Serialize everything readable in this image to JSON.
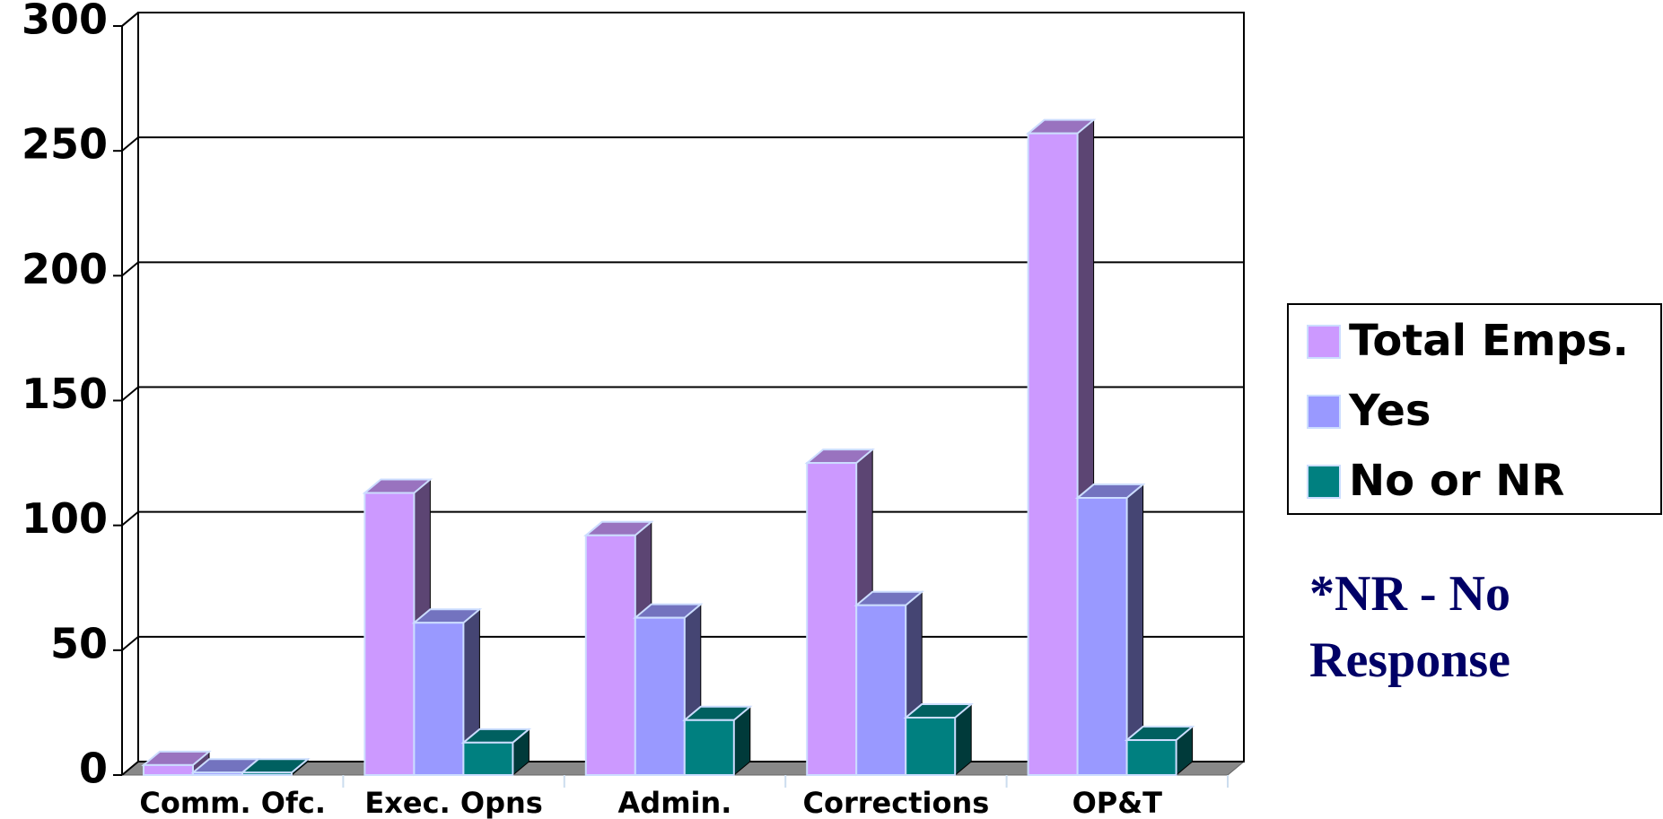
{
  "chart_data": {
    "type": "bar3d",
    "categories": [
      "Comm. Ofc.",
      "Exec. Opns",
      "Admin.",
      "Corrections",
      "OP&T"
    ],
    "series": [
      {
        "name": "Total Emps.",
        "color": "#cc99ff",
        "values": [
          4,
          113,
          96,
          125,
          257
        ]
      },
      {
        "name": "Yes",
        "color": "#9999ff",
        "values": [
          1,
          61,
          63,
          68,
          111
        ]
      },
      {
        "name": "No or NR",
        "color": "#008080",
        "values": [
          1,
          13,
          22,
          23,
          14
        ]
      }
    ],
    "ylim": [
      0,
      300
    ],
    "yticks": [
      0,
      50,
      100,
      150,
      200,
      250,
      300
    ],
    "grid": true,
    "legend": "right",
    "note": [
      "*NR - No",
      "Response"
    ]
  }
}
